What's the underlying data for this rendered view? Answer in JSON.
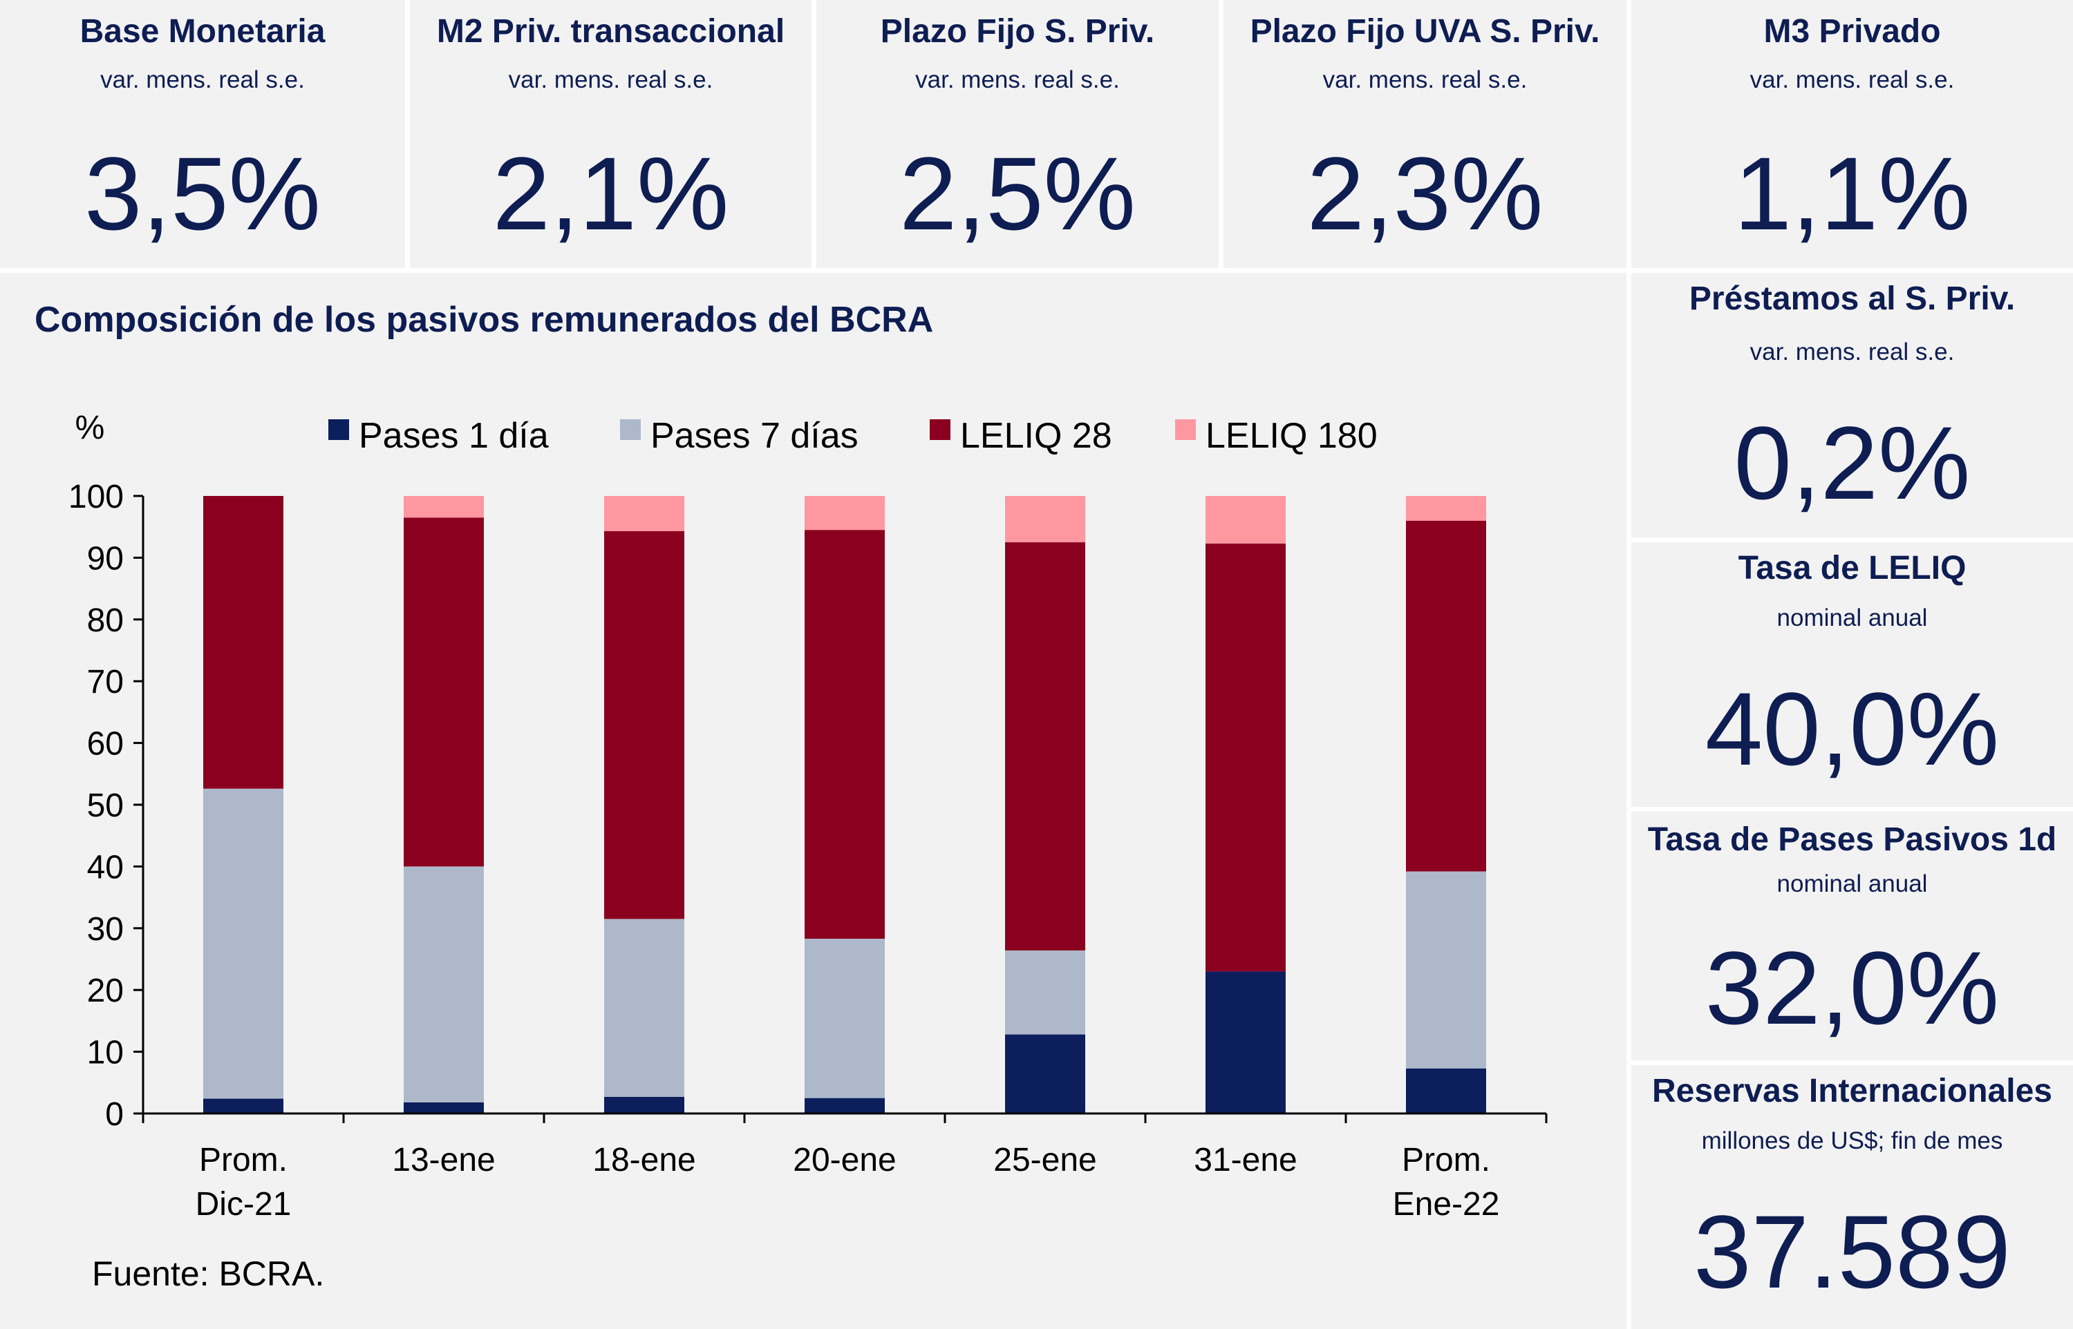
{
  "kpis": {
    "base_monetaria": {
      "title": "Base Monetaria",
      "subtitle": "var. mens. real s.e.",
      "value": "3,5%"
    },
    "m2": {
      "title": "M2 Priv. transaccional",
      "subtitle": "var. mens. real s.e.",
      "value": "2,1%"
    },
    "plazo_fijo": {
      "title": "Plazo Fijo S. Priv.",
      "subtitle": "var. mens. real s.e.",
      "value": "2,5%"
    },
    "plazo_fijo_uva": {
      "title": "Plazo Fijo UVA S. Priv.",
      "subtitle": "var. mens. real s.e.",
      "value": "2,3%"
    },
    "m3": {
      "title": "M3 Privado",
      "subtitle": "var. mens. real s.e.",
      "value": "1,1%"
    },
    "prestamos": {
      "title": "Préstamos al S. Priv.",
      "subtitle": "var. mens. real s.e.",
      "value": "0,2%"
    },
    "tasa_leliq": {
      "title": "Tasa de LELIQ",
      "subtitle": "nominal anual",
      "value": "40,0%"
    },
    "tasa_pases": {
      "title": "Tasa de Pases Pasivos 1d",
      "subtitle": "nominal anual",
      "value": "32,0%"
    },
    "reservas": {
      "title": "Reservas Internacionales",
      "subtitle": "millones de US$; fin de mes",
      "value": "37.589"
    }
  },
  "chart_data": {
    "type": "bar",
    "stacked": true,
    "title": "Composición de los pasivos remunerados del BCRA",
    "ylabel": "%",
    "ylim": [
      0,
      100
    ],
    "yticks": [
      0,
      10,
      20,
      30,
      40,
      50,
      60,
      70,
      80,
      90,
      100
    ],
    "legend_position": "top",
    "categories": [
      [
        "Prom.",
        "Dic-21"
      ],
      [
        "13-ene"
      ],
      [
        "18-ene"
      ],
      [
        "20-ene"
      ],
      [
        "25-ene"
      ],
      [
        "31-ene"
      ],
      [
        "Prom.",
        "Ene-22"
      ]
    ],
    "series": [
      {
        "name": "Pases 1 día",
        "color": "#0c1f5c",
        "values": [
          2.4,
          1.8,
          2.7,
          2.5,
          12.8,
          23.0,
          7.3
        ]
      },
      {
        "name": "Pases 7 días",
        "color": "#adb9cb",
        "values": [
          50.2,
          38.2,
          28.8,
          25.8,
          13.6,
          0.0,
          31.9
        ]
      },
      {
        "name": "LELIQ 28",
        "color": "#8b001e",
        "values": [
          47.4,
          56.5,
          62.8,
          66.2,
          66.1,
          69.3,
          56.8
        ]
      },
      {
        "name": "LELIQ 180",
        "color": "#ff97a0",
        "values": [
          0.0,
          3.5,
          5.7,
          5.5,
          7.5,
          7.7,
          4.0
        ]
      }
    ]
  },
  "source": "Fuente: BCRA."
}
